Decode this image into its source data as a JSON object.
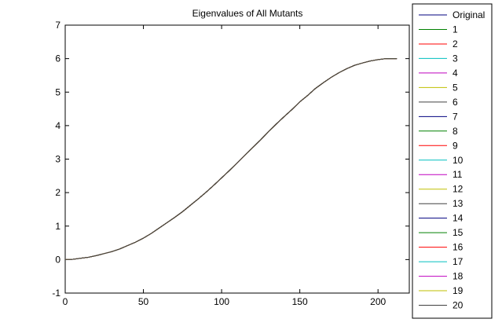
{
  "chart_data": {
    "type": "line",
    "title": "Eigenvalues of All Mutants",
    "xlabel": "",
    "ylabel": "",
    "xlim": [
      0,
      220
    ],
    "ylim": [
      -1,
      7
    ],
    "xticks": [
      0,
      50,
      100,
      150,
      200
    ],
    "yticks": [
      -1,
      0,
      1,
      2,
      3,
      4,
      5,
      6,
      7
    ],
    "grid": false,
    "legend_position": "outside-right",
    "series_colors": [
      "#00007f",
      "#008000",
      "#ff0000",
      "#00bfbf",
      "#bf00bf",
      "#bfbf00",
      "#404040"
    ],
    "x": [
      0,
      5,
      10,
      15,
      20,
      25,
      30,
      35,
      40,
      45,
      50,
      55,
      60,
      65,
      70,
      75,
      80,
      85,
      90,
      95,
      100,
      105,
      110,
      115,
      120,
      125,
      130,
      135,
      140,
      145,
      150,
      155,
      160,
      165,
      170,
      175,
      180,
      185,
      190,
      195,
      200,
      205,
      210,
      212
    ],
    "series": [
      {
        "name": "Original",
        "values": [
          0.0,
          0.01,
          0.04,
          0.07,
          0.12,
          0.18,
          0.24,
          0.32,
          0.42,
          0.52,
          0.64,
          0.78,
          0.94,
          1.1,
          1.26,
          1.43,
          1.62,
          1.81,
          2.01,
          2.22,
          2.44,
          2.66,
          2.89,
          3.12,
          3.35,
          3.58,
          3.82,
          4.05,
          4.27,
          4.48,
          4.71,
          4.9,
          5.11,
          5.28,
          5.44,
          5.58,
          5.7,
          5.8,
          5.87,
          5.93,
          5.97,
          6.0,
          6.0,
          6.0
        ]
      },
      {
        "name": "1"
      },
      {
        "name": "2"
      },
      {
        "name": "3"
      },
      {
        "name": "4"
      },
      {
        "name": "5"
      },
      {
        "name": "6"
      },
      {
        "name": "7"
      },
      {
        "name": "8"
      },
      {
        "name": "9"
      },
      {
        "name": "10"
      },
      {
        "name": "11"
      },
      {
        "name": "12"
      },
      {
        "name": "13"
      },
      {
        "name": "14"
      },
      {
        "name": "15"
      },
      {
        "name": "16"
      },
      {
        "name": "17"
      },
      {
        "name": "18"
      },
      {
        "name": "19"
      },
      {
        "name": "20"
      }
    ]
  }
}
